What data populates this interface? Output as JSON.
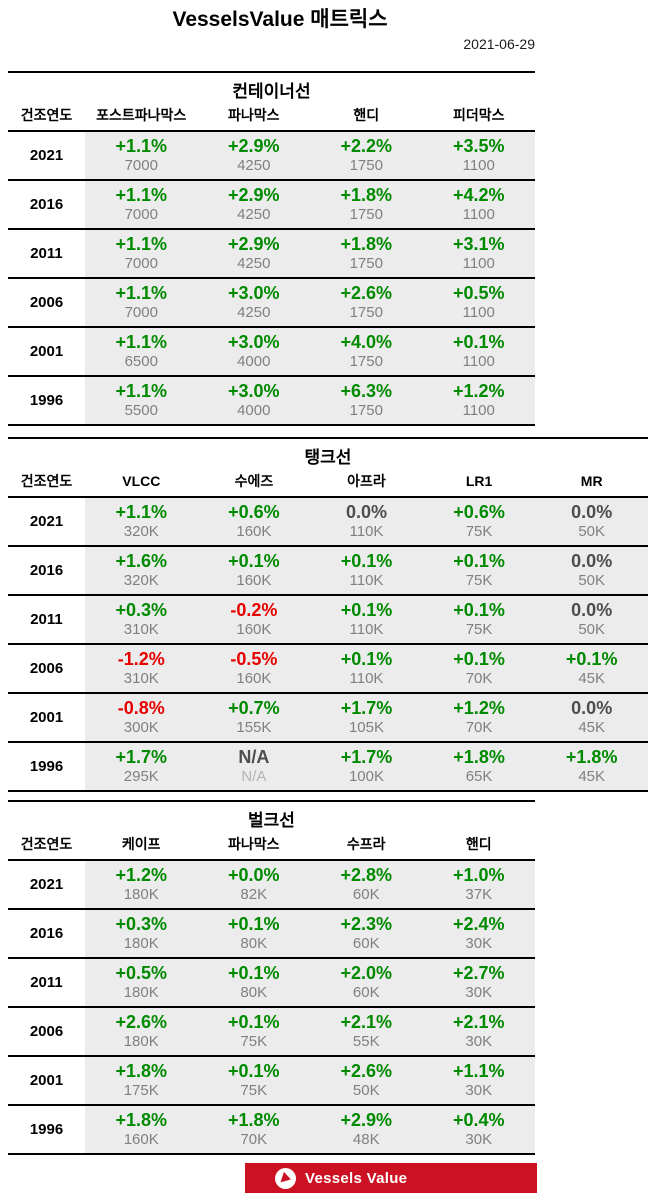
{
  "page": {
    "title": "VesselsValue 매트릭스",
    "date": "2021-06-29"
  },
  "year_header": "건조연도",
  "colors": {
    "positive": "#008A00",
    "negative": "#E60000",
    "neutral": "#4D4D4D",
    "base_value": "#808080",
    "cell_background": "#ECECEC",
    "banner": "#CC1122"
  },
  "tables": [
    {
      "id": "container-ships",
      "title": "컨테이너선",
      "columns": [
        "포스트파나막스",
        "파나막스",
        "핸디",
        "피더막스"
      ],
      "rows": [
        {
          "year": "2021",
          "cells": [
            {
              "pct": "+1.1%",
              "val": "7000",
              "cls": "pos"
            },
            {
              "pct": "+2.9%",
              "val": "4250",
              "cls": "pos"
            },
            {
              "pct": "+2.2%",
              "val": "1750",
              "cls": "pos"
            },
            {
              "pct": "+3.5%",
              "val": "1100",
              "cls": "pos"
            }
          ]
        },
        {
          "year": "2016",
          "cells": [
            {
              "pct": "+1.1%",
              "val": "7000",
              "cls": "pos"
            },
            {
              "pct": "+2.9%",
              "val": "4250",
              "cls": "pos"
            },
            {
              "pct": "+1.8%",
              "val": "1750",
              "cls": "pos"
            },
            {
              "pct": "+4.2%",
              "val": "1100",
              "cls": "pos"
            }
          ]
        },
        {
          "year": "2011",
          "cells": [
            {
              "pct": "+1.1%",
              "val": "7000",
              "cls": "pos"
            },
            {
              "pct": "+2.9%",
              "val": "4250",
              "cls": "pos"
            },
            {
              "pct": "+1.8%",
              "val": "1750",
              "cls": "pos"
            },
            {
              "pct": "+3.1%",
              "val": "1100",
              "cls": "pos"
            }
          ]
        },
        {
          "year": "2006",
          "cells": [
            {
              "pct": "+1.1%",
              "val": "7000",
              "cls": "pos"
            },
            {
              "pct": "+3.0%",
              "val": "4250",
              "cls": "pos"
            },
            {
              "pct": "+2.6%",
              "val": "1750",
              "cls": "pos"
            },
            {
              "pct": "+0.5%",
              "val": "1100",
              "cls": "pos"
            }
          ]
        },
        {
          "year": "2001",
          "cells": [
            {
              "pct": "+1.1%",
              "val": "6500",
              "cls": "pos"
            },
            {
              "pct": "+3.0%",
              "val": "4000",
              "cls": "pos"
            },
            {
              "pct": "+4.0%",
              "val": "1750",
              "cls": "pos"
            },
            {
              "pct": "+0.1%",
              "val": "1100",
              "cls": "pos"
            }
          ]
        },
        {
          "year": "1996",
          "cells": [
            {
              "pct": "+1.1%",
              "val": "5500",
              "cls": "pos"
            },
            {
              "pct": "+3.0%",
              "val": "4000",
              "cls": "pos"
            },
            {
              "pct": "+6.3%",
              "val": "1750",
              "cls": "pos"
            },
            {
              "pct": "+1.2%",
              "val": "1100",
              "cls": "pos"
            }
          ]
        }
      ]
    },
    {
      "id": "tankers",
      "title": "탱크선",
      "columns": [
        "VLCC",
        "수에즈",
        "아프라",
        "LR1",
        "MR"
      ],
      "rows": [
        {
          "year": "2021",
          "cells": [
            {
              "pct": "+1.1%",
              "val": "320K",
              "cls": "pos"
            },
            {
              "pct": "+0.6%",
              "val": "160K",
              "cls": "pos"
            },
            {
              "pct": "0.0%",
              "val": "110K",
              "cls": "zero"
            },
            {
              "pct": "+0.6%",
              "val": "75K",
              "cls": "pos"
            },
            {
              "pct": "0.0%",
              "val": "50K",
              "cls": "zero"
            }
          ]
        },
        {
          "year": "2016",
          "cells": [
            {
              "pct": "+1.6%",
              "val": "320K",
              "cls": "pos"
            },
            {
              "pct": "+0.1%",
              "val": "160K",
              "cls": "pos"
            },
            {
              "pct": "+0.1%",
              "val": "110K",
              "cls": "pos"
            },
            {
              "pct": "+0.1%",
              "val": "75K",
              "cls": "pos"
            },
            {
              "pct": "0.0%",
              "val": "50K",
              "cls": "zero"
            }
          ]
        },
        {
          "year": "2011",
          "cells": [
            {
              "pct": "+0.3%",
              "val": "310K",
              "cls": "pos"
            },
            {
              "pct": "-0.2%",
              "val": "160K",
              "cls": "neg"
            },
            {
              "pct": "+0.1%",
              "val": "110K",
              "cls": "pos"
            },
            {
              "pct": "+0.1%",
              "val": "75K",
              "cls": "pos"
            },
            {
              "pct": "0.0%",
              "val": "50K",
              "cls": "zero"
            }
          ]
        },
        {
          "year": "2006",
          "cells": [
            {
              "pct": "-1.2%",
              "val": "310K",
              "cls": "neg"
            },
            {
              "pct": "-0.5%",
              "val": "160K",
              "cls": "neg"
            },
            {
              "pct": "+0.1%",
              "val": "110K",
              "cls": "pos"
            },
            {
              "pct": "+0.1%",
              "val": "70K",
              "cls": "pos"
            },
            {
              "pct": "+0.1%",
              "val": "45K",
              "cls": "pos"
            }
          ]
        },
        {
          "year": "2001",
          "cells": [
            {
              "pct": "-0.8%",
              "val": "300K",
              "cls": "neg"
            },
            {
              "pct": "+0.7%",
              "val": "155K",
              "cls": "pos"
            },
            {
              "pct": "+1.7%",
              "val": "105K",
              "cls": "pos"
            },
            {
              "pct": "+1.2%",
              "val": "70K",
              "cls": "pos"
            },
            {
              "pct": "0.0%",
              "val": "45K",
              "cls": "zero"
            }
          ]
        },
        {
          "year": "1996",
          "cells": [
            {
              "pct": "+1.7%",
              "val": "295K",
              "cls": "pos"
            },
            {
              "pct": "N/A",
              "val": "N/A",
              "cls": "na"
            },
            {
              "pct": "+1.7%",
              "val": "100K",
              "cls": "pos"
            },
            {
              "pct": "+1.8%",
              "val": "65K",
              "cls": "pos"
            },
            {
              "pct": "+1.8%",
              "val": "45K",
              "cls": "pos"
            }
          ]
        }
      ]
    },
    {
      "id": "bulkers",
      "title": "벌크선",
      "columns": [
        "케이프",
        "파나막스",
        "수프라",
        "핸디"
      ],
      "rows": [
        {
          "year": "2021",
          "cells": [
            {
              "pct": "+1.2%",
              "val": "180K",
              "cls": "pos"
            },
            {
              "pct": "+0.0%",
              "val": "82K",
              "cls": "pos"
            },
            {
              "pct": "+2.8%",
              "val": "60K",
              "cls": "pos"
            },
            {
              "pct": "+1.0%",
              "val": "37K",
              "cls": "pos"
            }
          ]
        },
        {
          "year": "2016",
          "cells": [
            {
              "pct": "+0.3%",
              "val": "180K",
              "cls": "pos"
            },
            {
              "pct": "+0.1%",
              "val": "80K",
              "cls": "pos"
            },
            {
              "pct": "+2.3%",
              "val": "60K",
              "cls": "pos"
            },
            {
              "pct": "+2.4%",
              "val": "30K",
              "cls": "pos"
            }
          ]
        },
        {
          "year": "2011",
          "cells": [
            {
              "pct": "+0.5%",
              "val": "180K",
              "cls": "pos"
            },
            {
              "pct": "+0.1%",
              "val": "80K",
              "cls": "pos"
            },
            {
              "pct": "+2.0%",
              "val": "60K",
              "cls": "pos"
            },
            {
              "pct": "+2.7%",
              "val": "30K",
              "cls": "pos"
            }
          ]
        },
        {
          "year": "2006",
          "cells": [
            {
              "pct": "+2.6%",
              "val": "180K",
              "cls": "pos"
            },
            {
              "pct": "+0.1%",
              "val": "75K",
              "cls": "pos"
            },
            {
              "pct": "+2.1%",
              "val": "55K",
              "cls": "pos"
            },
            {
              "pct": "+2.1%",
              "val": "30K",
              "cls": "pos"
            }
          ]
        },
        {
          "year": "2001",
          "cells": [
            {
              "pct": "+1.8%",
              "val": "175K",
              "cls": "pos"
            },
            {
              "pct": "+0.1%",
              "val": "75K",
              "cls": "pos"
            },
            {
              "pct": "+2.6%",
              "val": "50K",
              "cls": "pos"
            },
            {
              "pct": "+1.1%",
              "val": "30K",
              "cls": "pos"
            }
          ]
        },
        {
          "year": "1996",
          "cells": [
            {
              "pct": "+1.8%",
              "val": "160K",
              "cls": "pos"
            },
            {
              "pct": "+1.8%",
              "val": "70K",
              "cls": "pos"
            },
            {
              "pct": "+2.9%",
              "val": "48K",
              "cls": "pos"
            },
            {
              "pct": "+0.4%",
              "val": "30K",
              "cls": "pos"
            }
          ]
        }
      ]
    }
  ],
  "footer": {
    "brand": "Vessels Value",
    "logo_icon": "sail-play-icon"
  }
}
